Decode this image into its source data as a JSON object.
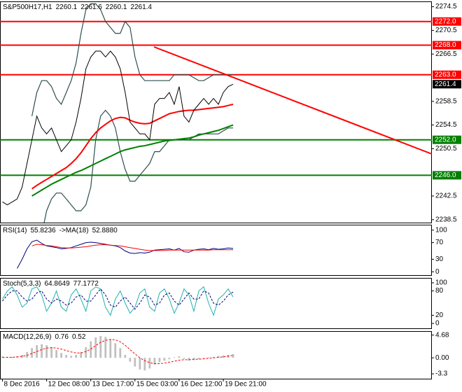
{
  "chart_data": [
    {
      "type": "line",
      "title": "S&P500H17,H1",
      "ohlc": [
        "2260.1",
        "2261.6",
        "2260.1",
        "2261.4"
      ],
      "xlim": [
        -0.5,
        87.5
      ],
      "ylim": [
        2238.0,
        2275.4
      ],
      "yticks": [
        2274.5,
        2270.5,
        2266.5,
        2258.5,
        2254.5,
        2250.5,
        2242.5,
        2238.5
      ],
      "last_price": 2261.4,
      "levels": [
        {
          "value": 2272.0,
          "label": "2272.0",
          "color": "#ff0000"
        },
        {
          "value": 2268.0,
          "label": "2268.0",
          "color": "#ff0000"
        },
        {
          "value": 2263.0,
          "label": "2263.0",
          "color": "#ff0000"
        },
        {
          "value": 2252.0,
          "label": "2252.0",
          "color": "#008000"
        },
        {
          "value": 2246.0,
          "label": "2246.0",
          "color": "#008000"
        }
      ],
      "series": [
        {
          "color": "#2f4f4f",
          "width": 1.2,
          "values": [
            null,
            null,
            null,
            null,
            null,
            null,
            2256,
            2260,
            2262,
            2262,
            2261,
            2259,
            2258,
            2260,
            2262,
            2265,
            2270,
            2274,
            2275,
            2275,
            2274,
            2272,
            2271,
            2270,
            2270,
            2272,
            2271,
            2266,
            2263,
            2262,
            2262,
            2262,
            2262,
            2262,
            2262,
            2263,
            2263,
            2263,
            2263,
            2262.5,
            2262,
            2262,
            2262.5,
            2263,
            2263,
            2263,
            2263,
            2263
          ]
        },
        {
          "color": "#2f4f4f",
          "width": 1.2,
          "values": [
            null,
            null,
            null,
            null,
            null,
            null,
            2238,
            2235,
            2236,
            2240,
            2242,
            2243,
            2243,
            2242,
            2241,
            2240,
            2240,
            2241,
            2244,
            2252,
            2256,
            2257,
            2256,
            2254,
            2250,
            2247,
            2245,
            2245,
            2246,
            2247,
            2248,
            2250,
            2250,
            2251,
            2252,
            2252,
            2252,
            2252,
            2252,
            2252.5,
            2253,
            2253,
            2253,
            2253,
            2253,
            2253.5,
            2254,
            2254
          ]
        },
        {
          "color": "#008000",
          "width": 2,
          "values": [
            null,
            null,
            null,
            null,
            null,
            null,
            2242.5,
            2243.0,
            2243.5,
            2244.0,
            2244.5,
            2244.9,
            2245.3,
            2245.7,
            2246.1,
            2246.5,
            2246.8,
            2247.2,
            2247.6,
            2248.0,
            2248.4,
            2248.8,
            2249.2,
            2249.6,
            2250.0,
            2250.3,
            2250.5,
            2250.7,
            2250.9,
            2251.0,
            2251.2,
            2251.4,
            2251.6,
            2251.8,
            2251.9,
            2252.0,
            2252.1,
            2252.2,
            2252.3,
            2252.5,
            2252.8,
            2253.0,
            2253.2,
            2253.4,
            2253.6,
            2253.9,
            2254.2,
            2254.5
          ]
        },
        {
          "color": "#ff0000",
          "width": 2,
          "values": [
            null,
            null,
            null,
            null,
            null,
            null,
            2243.7,
            2244.3,
            2244.8,
            2245.3,
            2245.8,
            2246.3,
            2246.8,
            2247.3,
            2248.0,
            2248.8,
            2249.8,
            2251.0,
            2252.2,
            2253.2,
            2254.0,
            2254.6,
            2255.2,
            2255.6,
            2255.8,
            2255.7,
            2255.3,
            2255.0,
            2254.8,
            2254.7,
            2254.8,
            2255.2,
            2255.6,
            2256.0,
            2256.4,
            2256.6,
            2256.8,
            2256.9,
            2257.0,
            2257.0,
            2257.1,
            2257.2,
            2257.3,
            2257.4,
            2257.5,
            2257.6,
            2257.8,
            2258.0
          ]
        },
        {
          "color": "#000000",
          "width": 1,
          "values": [
            2241.5,
            2241,
            2241.5,
            2242,
            2244,
            2248,
            2252,
            2256,
            2254,
            2253,
            2254,
            2252,
            2250,
            2251,
            2252,
            2255,
            2259,
            2264,
            2266,
            2267,
            2267,
            2266,
            2267,
            2266,
            2264,
            2260,
            2255,
            2254,
            2253,
            2253,
            2252,
            2258,
            2259,
            2259,
            2260,
            2258,
            2261,
            2256,
            2255,
            2257,
            2258,
            2259,
            2258,
            2259,
            2258,
            2260,
            2261,
            2261.4
          ]
        }
      ]
    },
    {
      "type": "line",
      "xlim": [
        -0.5,
        87.5
      ],
      "ylim": [
        -8,
        113
      ],
      "yticks": [
        100,
        70,
        30,
        0
      ],
      "series": [
        {
          "name": "RSI(14)",
          "last": "55.8236",
          "color": "#000080",
          "width": 1,
          "values": [
            null,
            null,
            null,
            8,
            30,
            55,
            72,
            76,
            68,
            62,
            60,
            58,
            55,
            56,
            58,
            62,
            66,
            70,
            71,
            70,
            68,
            66,
            64,
            62,
            58,
            50,
            45,
            44,
            46,
            45,
            47,
            52,
            53,
            54,
            55,
            52,
            56,
            48,
            47,
            52,
            54,
            55,
            53,
            56,
            54,
            55,
            57,
            55.8
          ]
        },
        {
          "name": "->MA(18)",
          "last": "52.8880",
          "color": "#ff0000",
          "width": 1,
          "values": [
            null,
            null,
            null,
            null,
            null,
            null,
            62,
            66,
            65,
            63,
            62,
            60,
            58,
            57,
            57,
            58,
            59,
            60,
            62,
            64,
            65,
            65,
            64,
            63,
            62,
            60,
            58,
            56,
            54,
            52,
            51,
            51,
            51,
            51,
            52,
            52,
            52,
            52,
            52,
            52,
            52,
            52,
            52,
            53,
            53,
            53,
            53,
            52.9
          ]
        }
      ]
    },
    {
      "type": "line",
      "xlim": [
        -0.5,
        87.5
      ],
      "ylim": [
        -12,
        112
      ],
      "yticks": [
        100,
        80,
        20,
        0
      ],
      "series": [
        {
          "name": "Stoch(5,3,3)",
          "last": "64.8649",
          "color": "#20b2aa",
          "width": 1,
          "values": [
            60,
            80,
            90,
            70,
            40,
            50,
            85,
            90,
            70,
            30,
            50,
            80,
            40,
            30,
            70,
            85,
            60,
            30,
            80,
            90,
            85,
            40,
            20,
            60,
            80,
            50,
            25,
            40,
            75,
            85,
            40,
            30,
            75,
            85,
            60,
            25,
            50,
            85,
            70,
            30,
            80,
            90,
            50,
            20,
            60,
            70,
            85,
            64.9
          ]
        },
        {
          "last": "77.1772",
          "color": "#000080",
          "width": 1,
          "dashed": true,
          "values": [
            55,
            70,
            80,
            80,
            65,
            55,
            60,
            75,
            80,
            60,
            50,
            60,
            55,
            45,
            50,
            65,
            70,
            55,
            55,
            70,
            85,
            70,
            45,
            40,
            55,
            65,
            50,
            35,
            50,
            70,
            65,
            45,
            50,
            70,
            75,
            55,
            45,
            60,
            75,
            60,
            60,
            80,
            75,
            50,
            45,
            55,
            70,
            77.2
          ]
        }
      ]
    },
    {
      "type": "bar",
      "xlim": [
        -0.5,
        87.5
      ],
      "ylim": [
        -4.3,
        5.5
      ],
      "yticks": [
        4.68,
        {
          "value": 0,
          "label": "0.00"
        },
        -3.3
      ],
      "xticks": [
        {
          "value": 0,
          "label": "8 Dec 2016"
        },
        {
          "value": 9,
          "label": "12 Dec 08:00"
        },
        {
          "value": 18,
          "label": "13 Dec 17:00"
        },
        {
          "value": 27,
          "label": "15 Dec 03:00"
        },
        {
          "value": 36,
          "label": "16 Dec 12:00"
        },
        {
          "value": 45,
          "label": "19 Dec 21:00"
        }
      ],
      "series": [
        {
          "name": "MACD(12,26,9)",
          "last": "0.76",
          "type": "bar",
          "color": "#c0c0c0",
          "values": [
            0.3,
            0.2,
            0.2,
            0.3,
            0.6,
            1.2,
            2.0,
            2.6,
            2.8,
            2.6,
            2.2,
            1.6,
            1.0,
            0.6,
            0.4,
            0.6,
            1.2,
            2.2,
            3.4,
            4.2,
            4.5,
            4.3,
            3.8,
            3.0,
            2.0,
            0.6,
            -0.8,
            -1.8,
            -2.4,
            -2.6,
            -2.2,
            -1.4,
            -0.9,
            -0.6,
            -0.3,
            0.1,
            0.3,
            -0.2,
            -0.6,
            -0.5,
            -0.3,
            -0.1,
            0.1,
            0.2,
            0.4,
            0.5,
            0.6,
            0.76
          ]
        },
        {
          "last": "0.52",
          "type": "line",
          "color": "#ff0000",
          "width": 1,
          "dashed": true,
          "values": [
            0.1,
            0.1,
            0.1,
            0.2,
            0.3,
            0.5,
            0.9,
            1.3,
            1.7,
            2.0,
            2.1,
            2.0,
            1.8,
            1.5,
            1.2,
            1.0,
            1.0,
            1.3,
            1.8,
            2.5,
            3.2,
            3.6,
            3.8,
            3.7,
            3.3,
            2.6,
            1.7,
            0.8,
            0.0,
            -0.6,
            -1.0,
            -1.2,
            -1.2,
            -1.1,
            -0.9,
            -0.7,
            -0.5,
            -0.4,
            -0.4,
            -0.3,
            -0.3,
            -0.2,
            -0.1,
            0.0,
            0.1,
            0.2,
            0.35,
            0.52
          ]
        }
      ]
    }
  ]
}
